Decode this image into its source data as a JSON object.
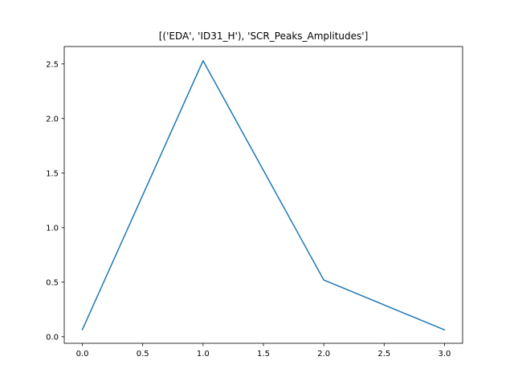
{
  "chart_data": {
    "type": "line",
    "title": "[('EDA', 'ID31_H'), 'SCR_Peaks_Amplitudes']",
    "xlabel": "",
    "ylabel": "",
    "x": [
      0,
      1,
      2,
      3
    ],
    "series": [
      {
        "values": [
          0.065,
          2.53,
          0.52,
          0.063
        ],
        "color": "#1f77b4"
      }
    ],
    "xlim": [
      -0.15,
      3.15
    ],
    "ylim": [
      -0.06,
      2.66
    ],
    "xticks": [
      0.0,
      0.5,
      1.0,
      1.5,
      2.0,
      2.5,
      3.0
    ],
    "xtick_labels": [
      "0.0",
      "0.5",
      "1.0",
      "1.5",
      "2.0",
      "2.5",
      "3.0"
    ],
    "yticks": [
      0.0,
      0.5,
      1.0,
      1.5,
      2.0,
      2.5
    ],
    "ytick_labels": [
      "0.0",
      "0.5",
      "1.0",
      "1.5",
      "2.0",
      "2.5"
    ],
    "grid": false,
    "legend": "none"
  }
}
